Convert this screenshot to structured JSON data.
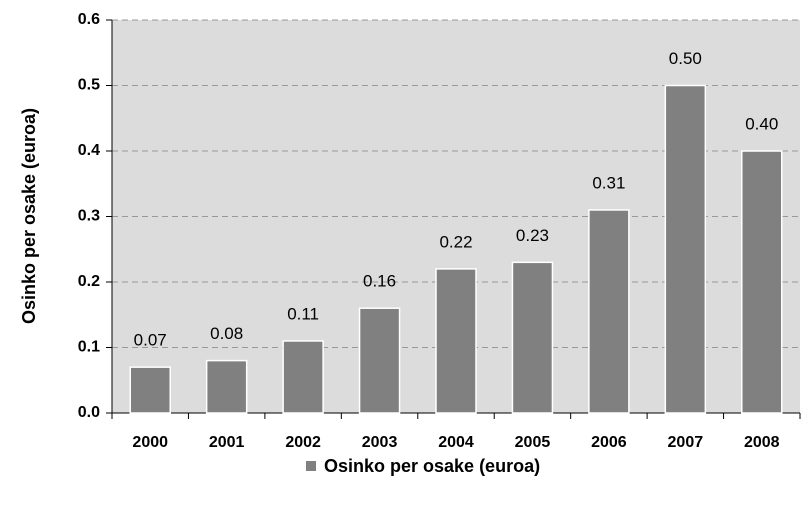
{
  "chart_data": {
    "type": "bar",
    "y_label": "Osinko per osake (euroa)",
    "categories": [
      "2000",
      "2001",
      "2002",
      "2003",
      "2004",
      "2005",
      "2006",
      "2007",
      "2008"
    ],
    "series": [
      {
        "name": "Osinko per osake (euroa)",
        "color": "#808080",
        "values": [
          0.07,
          0.08,
          0.11,
          0.16,
          0.22,
          0.23,
          0.31,
          0.5,
          0.4
        ],
        "value_labels": [
          "0.07",
          "0.08",
          "0.11",
          "0.16",
          "0.22",
          "0.23",
          "0.31",
          "0.50",
          "0.40"
        ]
      }
    ],
    "ylim": [
      0,
      0.6
    ],
    "yticks": [
      {
        "value": 0,
        "label": "0.0"
      },
      0.1,
      0.2,
      0.3,
      0.4,
      0.5,
      0.6
    ],
    "grid": true,
    "legend": "bottom"
  }
}
